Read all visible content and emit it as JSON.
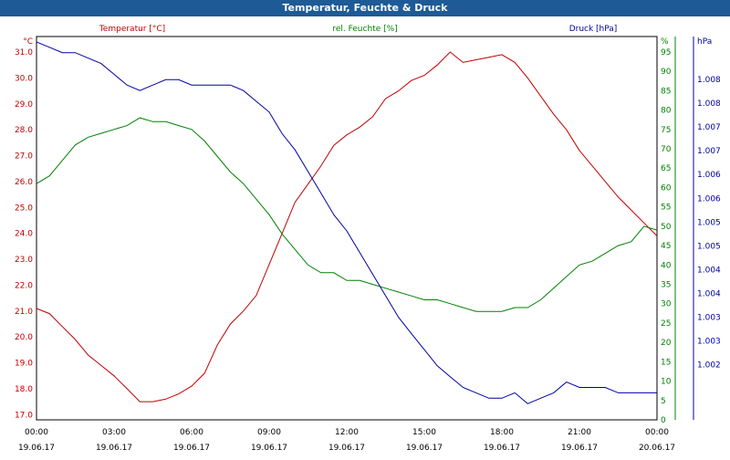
{
  "window": {
    "title": "Temperatur, Feuchte & Druck"
  },
  "chart_data": {
    "type": "line",
    "title": "Temperatur, Feuchte & Druck",
    "x_ticks": [
      {
        "time": "00:00",
        "date": "19.06.17"
      },
      {
        "time": "03:00",
        "date": "19.06.17"
      },
      {
        "time": "06:00",
        "date": "19.06.17"
      },
      {
        "time": "09:00",
        "date": "19.06.17"
      },
      {
        "time": "12:00",
        "date": "19.06.17"
      },
      {
        "time": "15:00",
        "date": "19.06.17"
      },
      {
        "time": "18:00",
        "date": "19.06.17"
      },
      {
        "time": "21:00",
        "date": "19.06.17"
      },
      {
        "time": "00:00",
        "date": "20.06.17"
      }
    ],
    "axes": {
      "temperature": {
        "label": "Temperatur [°C]",
        "unit": "°C",
        "color": "#c00000",
        "ylim": [
          16.8,
          31.6
        ],
        "ticks": [
          "31.0",
          "30.0",
          "29.0",
          "28.0",
          "27.0",
          "26.0",
          "25.0",
          "24.0",
          "23.0",
          "22.0",
          "21.0",
          "20.0",
          "19.0",
          "18.0",
          "17.0"
        ]
      },
      "humidity": {
        "label": "rel. Feuchte [%]",
        "unit": "%",
        "color": "#008000",
        "ylim": [
          0,
          99
        ],
        "ticks": [
          "95",
          "90",
          "85",
          "80",
          "75",
          "70",
          "65",
          "60",
          "55",
          "50",
          "45",
          "40",
          "35",
          "30",
          "25",
          "20",
          "15",
          "10",
          "5",
          "0"
        ]
      },
      "pressure": {
        "label": "Druck [hPa]",
        "unit": "hPa",
        "color": "#0000a0",
        "ylim": [
          1.0015,
          1.0086
        ],
        "ticks": [
          "1.008",
          "1.008",
          "1.007",
          "1.007",
          "1.006",
          "1.006",
          "1.005",
          "1.005",
          "1.004",
          "1.004",
          "1.003",
          "1.003",
          "1.002"
        ]
      }
    },
    "series": [
      {
        "name": "Temperatur [°C]",
        "axis": "temperature",
        "color": "#c00000",
        "x_hours": [
          0,
          0.5,
          1,
          1.5,
          2,
          2.5,
          3,
          3.5,
          4,
          4.5,
          5,
          5.5,
          6,
          6.5,
          7,
          7.5,
          8,
          8.5,
          9,
          9.5,
          10,
          10.5,
          11,
          11.5,
          12,
          12.5,
          13,
          13.5,
          14,
          14.5,
          15,
          15.5,
          16,
          16.5,
          17,
          17.5,
          18,
          18.5,
          19,
          19.5,
          20,
          20.5,
          21,
          21.5,
          22,
          22.5,
          23,
          23.5,
          24
        ],
        "values": [
          21.1,
          20.9,
          20.4,
          19.9,
          19.3,
          18.9,
          18.5,
          18.0,
          17.5,
          17.5,
          17.6,
          17.8,
          18.1,
          18.6,
          19.7,
          20.5,
          21.0,
          21.6,
          22.8,
          24.0,
          25.2,
          25.9,
          26.6,
          27.4,
          27.8,
          28.1,
          28.5,
          29.2,
          29.5,
          29.9,
          30.1,
          30.5,
          31.0,
          30.6,
          30.7,
          30.8,
          30.9,
          30.6,
          30.0,
          29.3,
          28.6,
          28.0,
          27.2,
          26.6,
          26.0,
          25.4,
          24.9,
          24.4,
          23.9
        ]
      },
      {
        "name": "rel. Feuchte [%]",
        "axis": "humidity",
        "color": "#008000",
        "x_hours": [
          0,
          0.5,
          1,
          1.5,
          2,
          2.5,
          3,
          3.5,
          4,
          4.5,
          5,
          5.5,
          6,
          6.5,
          7,
          7.5,
          8,
          8.5,
          9,
          9.5,
          10,
          10.5,
          11,
          11.5,
          12,
          12.5,
          13,
          13.5,
          14,
          14.5,
          15,
          15.5,
          16,
          16.5,
          17,
          17.5,
          18,
          18.5,
          19,
          19.5,
          20,
          20.5,
          21,
          21.5,
          22,
          22.5,
          23,
          23.5,
          24
        ],
        "values": [
          61,
          63,
          67,
          71,
          73,
          74,
          75,
          76,
          78,
          77,
          77,
          76,
          75,
          72,
          68,
          64,
          61,
          57,
          53,
          48,
          44,
          40,
          38,
          38,
          36,
          36,
          35,
          34,
          33,
          32,
          31,
          31,
          30,
          29,
          28,
          28,
          28,
          29,
          29,
          31,
          34,
          37,
          40,
          41,
          43,
          45,
          46,
          50,
          49
        ]
      },
      {
        "name": "Druck [hPa]",
        "axis": "pressure",
        "color": "#0000a0",
        "x_hours": [
          0,
          0.5,
          1,
          1.5,
          2,
          2.5,
          3,
          3.5,
          4,
          4.5,
          5,
          5.5,
          6,
          6.5,
          7,
          7.5,
          8,
          8.5,
          9,
          9.5,
          10,
          10.5,
          11,
          11.5,
          12,
          12.5,
          13,
          13.5,
          14,
          14.5,
          15,
          15.5,
          16,
          16.5,
          17,
          17.5,
          18,
          18.5,
          19,
          19.5,
          20,
          20.5,
          21,
          21.5,
          22,
          22.5,
          23,
          23.5,
          24
        ],
        "values": [
          1.0085,
          1.0084,
          1.0083,
          1.0083,
          1.0082,
          1.0081,
          1.0079,
          1.0077,
          1.0076,
          1.0077,
          1.0078,
          1.0078,
          1.0077,
          1.0077,
          1.0077,
          1.0077,
          1.0076,
          1.0074,
          1.0072,
          1.0068,
          1.0065,
          1.0061,
          1.0057,
          1.0053,
          1.005,
          1.0046,
          1.0042,
          1.0038,
          1.0034,
          1.0031,
          1.0028,
          1.0025,
          1.0023,
          1.0021,
          1.002,
          1.0019,
          1.0019,
          1.002,
          1.0018,
          1.0019,
          1.002,
          1.0022,
          1.0021,
          1.0021,
          1.0021,
          1.002,
          1.002,
          1.002,
          1.002
        ]
      }
    ],
    "grid": true,
    "legend": "top"
  }
}
